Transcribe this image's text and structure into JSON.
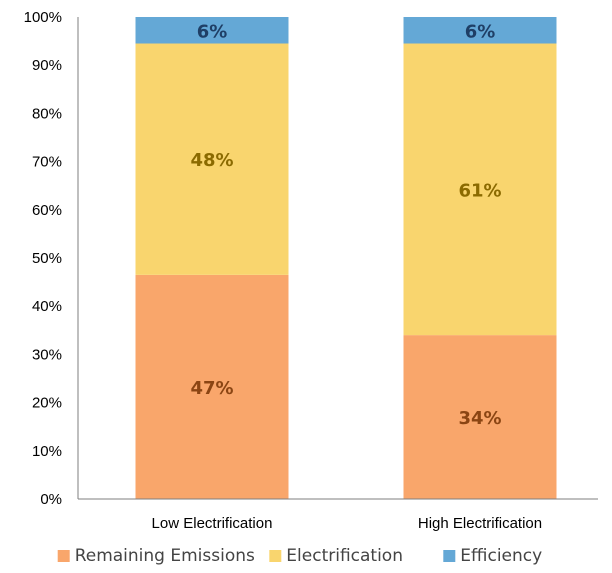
{
  "chart_data": {
    "type": "bar",
    "stacked": true,
    "categories": [
      "Low Electrification",
      "High Electrification"
    ],
    "series": [
      {
        "name": "Remaining Emissions",
        "values": [
          46.5,
          34
        ],
        "labels": [
          "47%",
          "34%"
        ],
        "color": "#F9A66B",
        "label_color": "#8B4513"
      },
      {
        "name": "Electrification",
        "values": [
          48,
          60.5
        ],
        "labels": [
          "48%",
          "61%"
        ],
        "color": "#F9D56E",
        "label_color": "#8B6A00"
      },
      {
        "name": "Efficiency",
        "values": [
          5.5,
          5.5
        ],
        "labels": [
          "6%",
          "6%"
        ],
        "color": "#64A8D6",
        "label_color": "#1F3F66"
      }
    ],
    "yticks": [
      "0%",
      "10%",
      "20%",
      "30%",
      "40%",
      "50%",
      "60%",
      "70%",
      "80%",
      "90%",
      "100%"
    ],
    "ylim": [
      0,
      100
    ],
    "title": "",
    "xlabel": "",
    "ylabel": "",
    "grid": false,
    "legend": "bottom"
  }
}
